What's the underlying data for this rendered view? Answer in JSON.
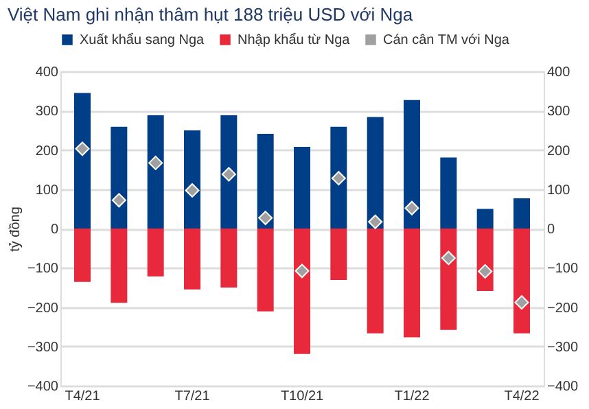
{
  "chart_data": {
    "type": "bar",
    "title": "Việt Nam ghi nhận thâm hụt 188 triệu USD với Nga",
    "ylabel": "tỷ đồng",
    "categories": [
      "T4/21",
      null,
      null,
      "T7/21",
      null,
      null,
      "T10/21",
      null,
      null,
      "T1/22",
      null,
      null,
      "T4/22"
    ],
    "series": [
      {
        "name": "Xuất khẩu sang Nga",
        "color": "#003f87",
        "values": [
          345,
          259,
          288,
          250,
          288,
          241,
          208,
          259,
          284,
          327,
          181,
          50,
          77
        ]
      },
      {
        "name": "Nhập khẩu từ Nga",
        "color": "#e8293b",
        "values": [
          -136,
          -189,
          -122,
          -155,
          -150,
          -211,
          -319,
          -131,
          -267,
          -277,
          -258,
          -159,
          -267
        ]
      },
      {
        "name": "Cán cân TM với Nga",
        "type": "scatter",
        "marker": "diamond",
        "color": "#a0a0a0",
        "values": [
          203,
          72,
          167,
          97,
          138,
          27,
          -108,
          128,
          17,
          52,
          -75,
          -109,
          -188
        ]
      }
    ],
    "ylim": [
      -400,
      400
    ],
    "yticks": [
      -400,
      -300,
      -200,
      -100,
      0,
      100,
      200,
      300,
      400
    ],
    "y2lim": [
      -400,
      400
    ],
    "y2ticks": [
      -400,
      -300,
      -200,
      -100,
      0,
      100,
      200,
      300,
      400
    ],
    "grid": "y",
    "legend": "top",
    "stacked": true
  }
}
